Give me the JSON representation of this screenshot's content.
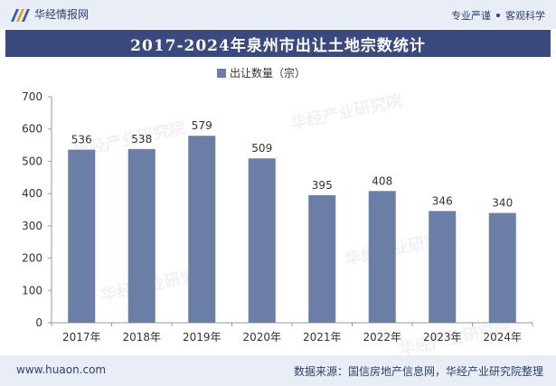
{
  "header": {
    "brand": "华经情报网",
    "slogan_left": "专业严谨",
    "slogan_right": "客观科学"
  },
  "title": "2017-2024年泉州市出让土地宗数统计",
  "legend_label": "出让数量（宗）",
  "footer": {
    "url": "www.huaon.com",
    "source": "数据来源：国信房地产信息网，华经产业研究院整理"
  },
  "colors": {
    "bar": "#6b7fa6",
    "title_bg": "#3a4a7e",
    "band_bg": "#e9edf5"
  },
  "chart_data": {
    "type": "bar",
    "categories": [
      "2017年",
      "2018年",
      "2019年",
      "2020年",
      "2021年",
      "2022年",
      "2023年",
      "2024年"
    ],
    "series": [
      {
        "name": "出让数量（宗）",
        "values": [
          536,
          538,
          579,
          509,
          395,
          408,
          346,
          340
        ]
      }
    ],
    "ylim": [
      0,
      700
    ],
    "yticks": [
      0,
      100,
      200,
      300,
      400,
      500,
      600,
      700
    ],
    "grid": false,
    "legend_position": "top"
  }
}
